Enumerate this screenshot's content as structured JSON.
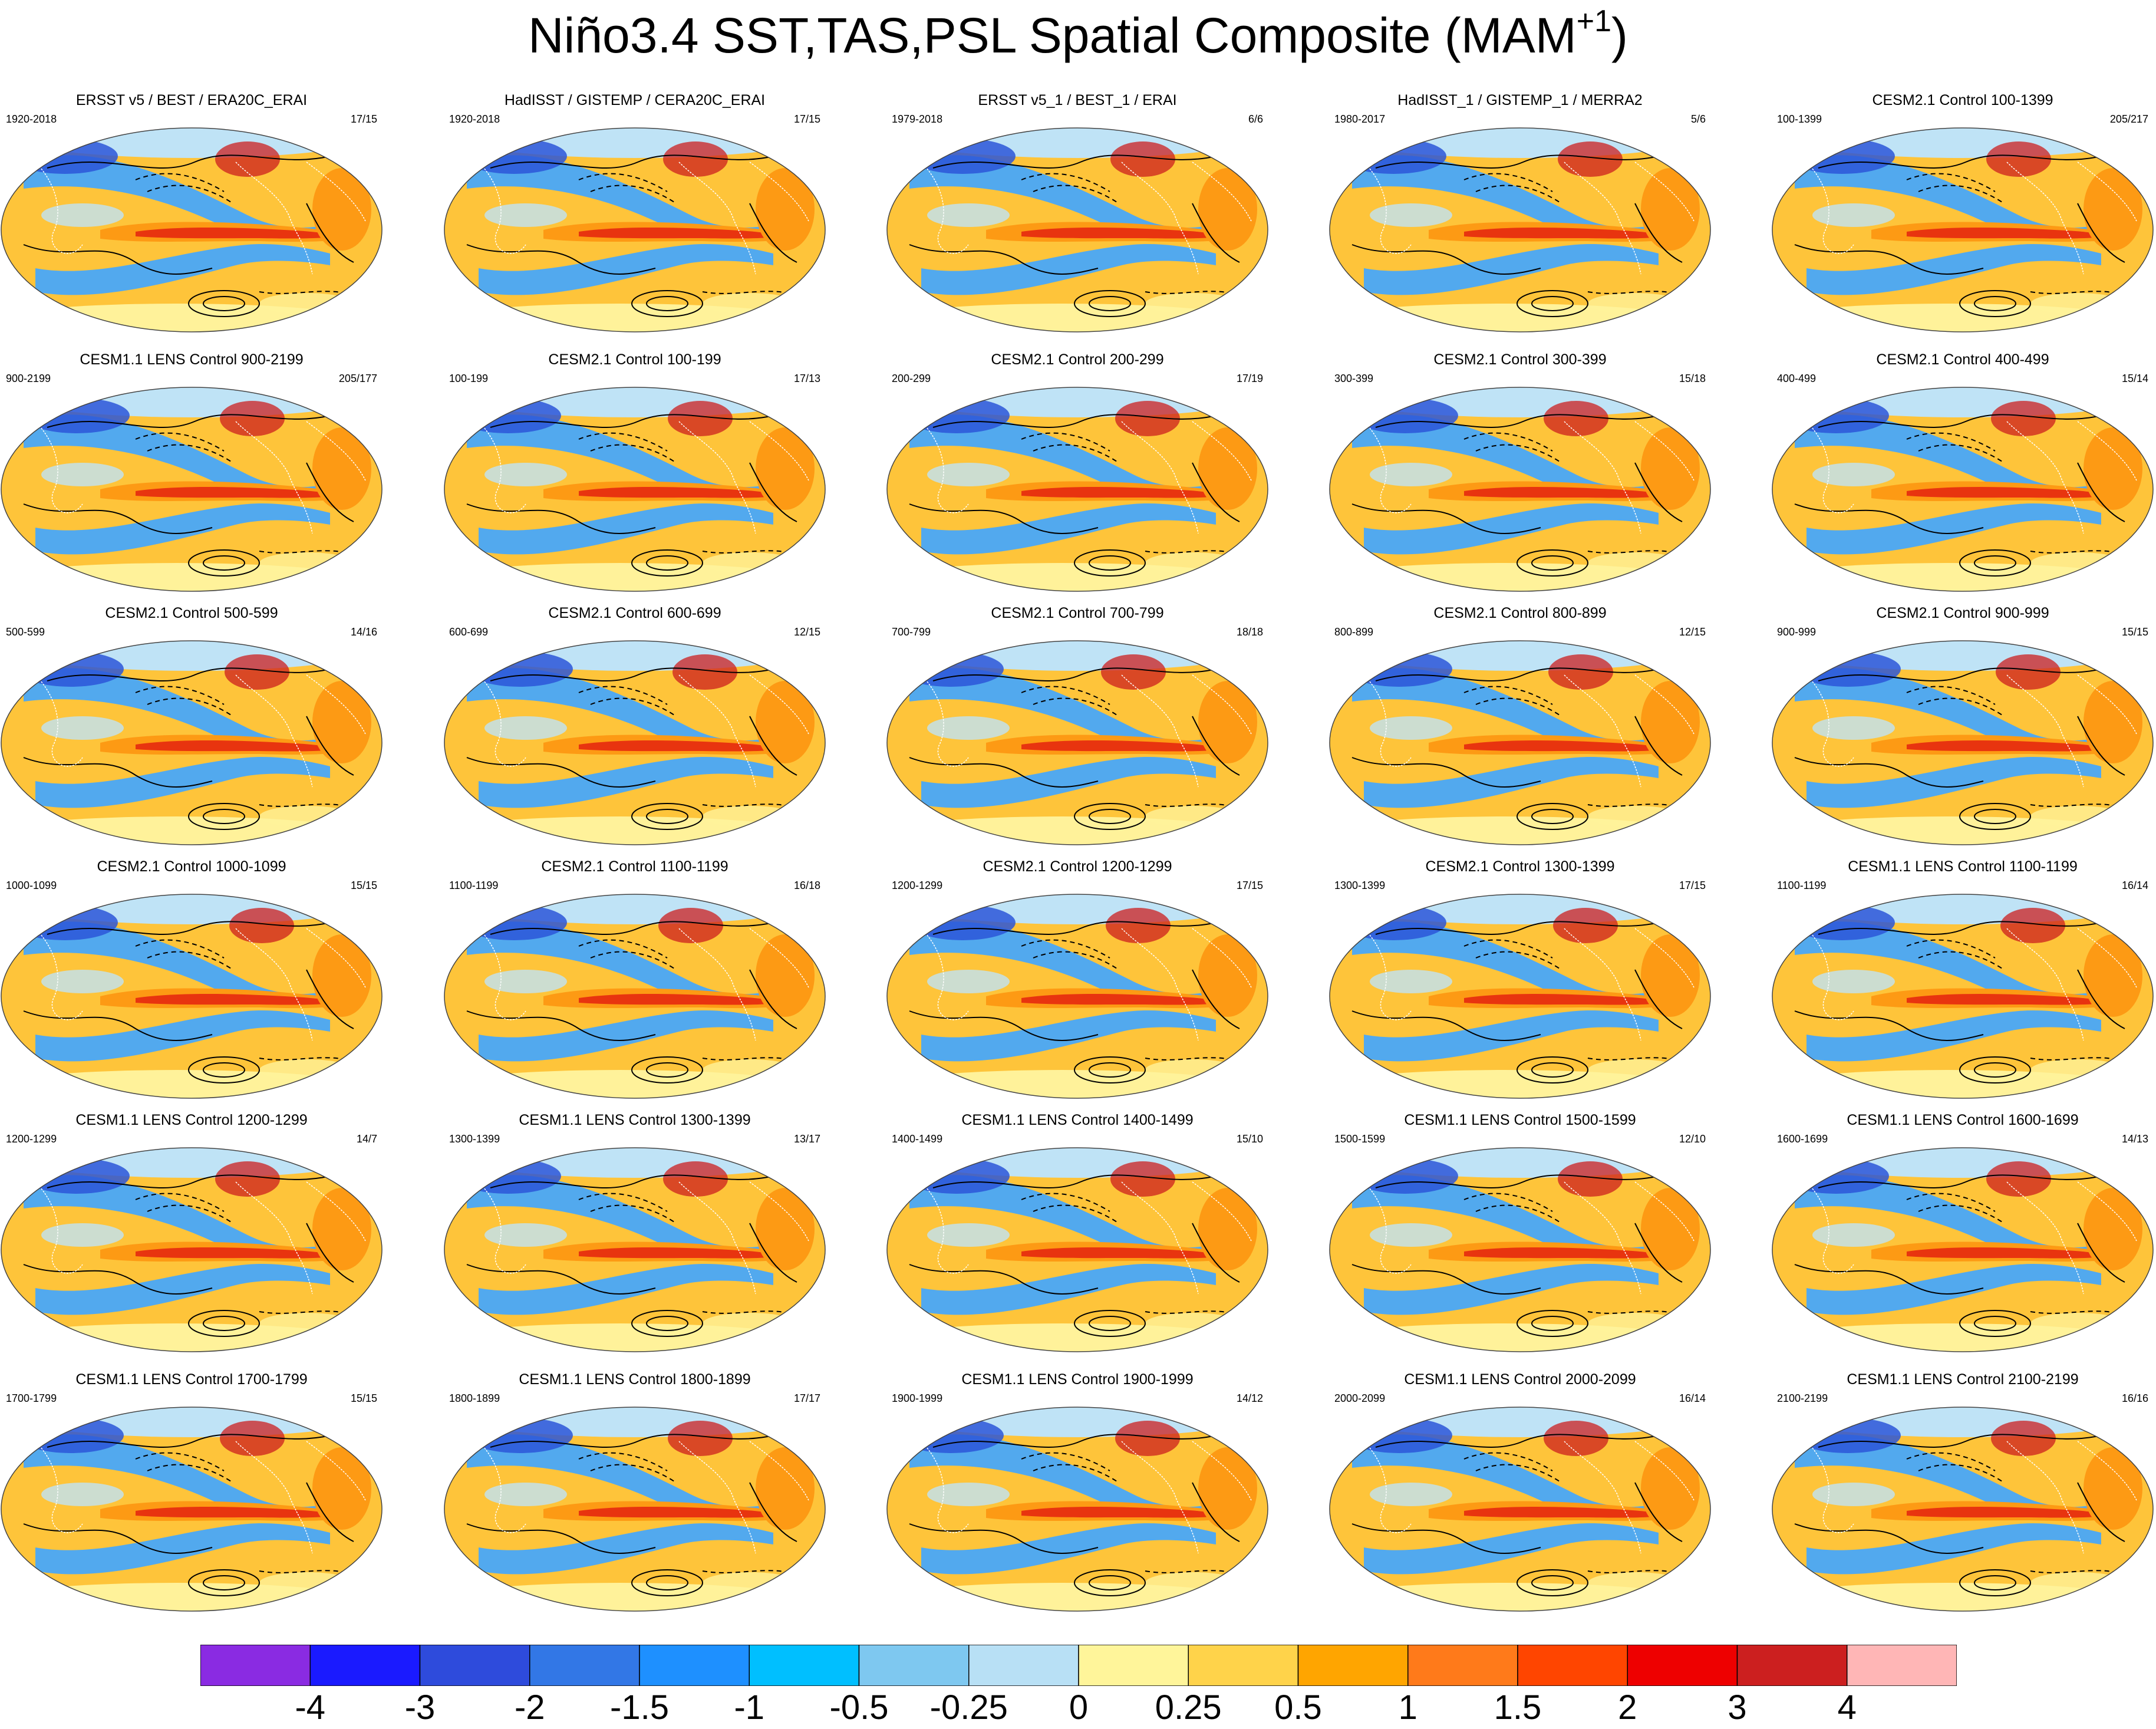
{
  "figure": {
    "title_main": "Niño3.4 SST,TAS,PSL Spatial Composite (MAM",
    "title_sup": "+1",
    "title_close": ")"
  },
  "panels": [
    {
      "title": "ERSST v5 / BEST / ERA20C_ERAI",
      "years": "1920-2018",
      "count": "17/15"
    },
    {
      "title": "HadISST / GISTEMP / CERA20C_ERAI",
      "years": "1920-2018",
      "count": "17/15"
    },
    {
      "title": "ERSST v5_1 / BEST_1 / ERAI",
      "years": "1979-2018",
      "count": "6/6"
    },
    {
      "title": "HadISST_1 / GISTEMP_1 / MERRA2",
      "years": "1980-2017",
      "count": "5/6"
    },
    {
      "title": "CESM2.1 Control 100-1399",
      "years": "100-1399",
      "count": "205/217"
    },
    {
      "title": "CESM1.1 LENS Control 900-2199",
      "years": "900-2199",
      "count": "205/177"
    },
    {
      "title": "CESM2.1 Control 100-199",
      "years": "100-199",
      "count": "17/13"
    },
    {
      "title": "CESM2.1 Control 200-299",
      "years": "200-299",
      "count": "17/19"
    },
    {
      "title": "CESM2.1 Control 300-399",
      "years": "300-399",
      "count": "15/18"
    },
    {
      "title": "CESM2.1 Control 400-499",
      "years": "400-499",
      "count": "15/14"
    },
    {
      "title": "CESM2.1 Control 500-599",
      "years": "500-599",
      "count": "14/16"
    },
    {
      "title": "CESM2.1 Control 600-699",
      "years": "600-699",
      "count": "12/15"
    },
    {
      "title": "CESM2.1 Control 700-799",
      "years": "700-799",
      "count": "18/18"
    },
    {
      "title": "CESM2.1 Control 800-899",
      "years": "800-899",
      "count": "12/15"
    },
    {
      "title": "CESM2.1 Control 900-999",
      "years": "900-999",
      "count": "15/15"
    },
    {
      "title": "CESM2.1 Control 1000-1099",
      "years": "1000-1099",
      "count": "15/15"
    },
    {
      "title": "CESM2.1 Control 1100-1199",
      "years": "1100-1199",
      "count": "16/18"
    },
    {
      "title": "CESM2.1 Control 1200-1299",
      "years": "1200-1299",
      "count": "17/15"
    },
    {
      "title": "CESM2.1 Control 1300-1399",
      "years": "1300-1399",
      "count": "17/15"
    },
    {
      "title": "CESM1.1 LENS Control 1100-1199",
      "years": "1100-1199",
      "count": "16/14"
    },
    {
      "title": "CESM1.1 LENS Control 1200-1299",
      "years": "1200-1299",
      "count": "14/7"
    },
    {
      "title": "CESM1.1 LENS Control 1300-1399",
      "years": "1300-1399",
      "count": "13/17"
    },
    {
      "title": "CESM1.1 LENS Control 1400-1499",
      "years": "1400-1499",
      "count": "15/10"
    },
    {
      "title": "CESM1.1 LENS Control 1500-1599",
      "years": "1500-1599",
      "count": "12/10"
    },
    {
      "title": "CESM1.1 LENS Control 1600-1699",
      "years": "1600-1699",
      "count": "14/13"
    },
    {
      "title": "CESM1.1 LENS Control 1700-1799",
      "years": "1700-1799",
      "count": "15/15"
    },
    {
      "title": "CESM1.1 LENS Control 1800-1899",
      "years": "1800-1899",
      "count": "17/17"
    },
    {
      "title": "CESM1.1 LENS Control 1900-1999",
      "years": "1900-1999",
      "count": "14/12"
    },
    {
      "title": "CESM1.1 LENS Control 2000-2099",
      "years": "2000-2099",
      "count": "16/14"
    },
    {
      "title": "CESM1.1 LENS Control 2100-2199",
      "years": "2100-2199",
      "count": "16/16"
    }
  ],
  "colorbar": {
    "colors": [
      "#8a2be2",
      "#1a1aff",
      "#2e4bdc",
      "#3277e6",
      "#1e90ff",
      "#00bfff",
      "#7ec8f0",
      "#b8e0f5",
      "#fff59a",
      "#ffd34a",
      "#ffa500",
      "#ff7a1a",
      "#ff4500",
      "#ee0000",
      "#cc1f1f",
      "#ffb6b6"
    ],
    "labels": [
      "-4",
      "-3",
      "-2",
      "-1.5",
      "-1",
      "-0.5",
      "-0.25",
      "0",
      "0.25",
      "0.5",
      "1",
      "1.5",
      "2",
      "3",
      "4"
    ]
  },
  "map_colors": {
    "background": "#fec43a",
    "equatorial_tongue": "#e8340f",
    "warm": "#fd9a14",
    "cool": "#52a9ee",
    "light_cool": "#bfe3f6",
    "light_warm": "#fff29a",
    "deep_cool": "#2b56d8",
    "deep_warm": "#cc1f1f",
    "contour": "#000000",
    "coastline": "#ffffff"
  }
}
